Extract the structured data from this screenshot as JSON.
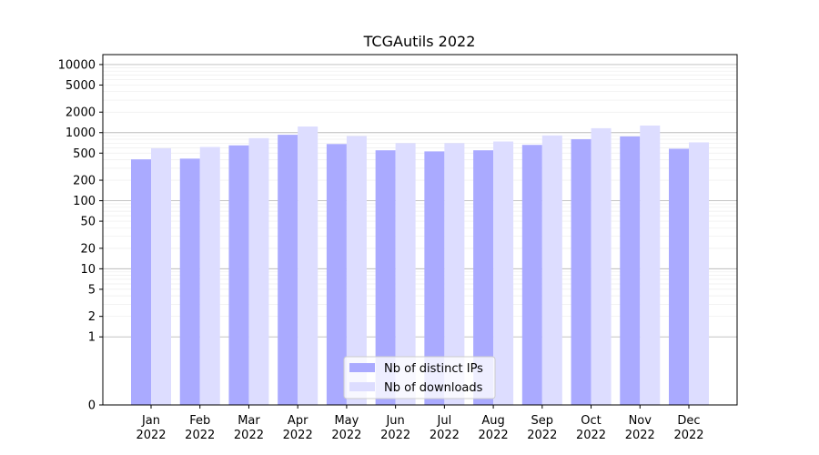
{
  "chart_data": {
    "type": "bar",
    "title": "TCGAutils 2022",
    "xlabel": "",
    "ylabel": "",
    "yscale": "symlog",
    "ylim": [
      0,
      14000
    ],
    "yticks": [
      0,
      1,
      2,
      5,
      10,
      20,
      50,
      100,
      200,
      500,
      1000,
      2000,
      5000,
      10000
    ],
    "ytick_labels": [
      "0",
      "1",
      "2",
      "5",
      "10",
      "20",
      "50",
      "100",
      "200",
      "500",
      "1000",
      "2000",
      "5000",
      "10000"
    ],
    "grid": true,
    "legend_position": "bottom-center",
    "categories": [
      "Jan\n2022",
      "Feb\n2022",
      "Mar\n2022",
      "Apr\n2022",
      "May\n2022",
      "Jun\n2022",
      "Jul\n2022",
      "Aug\n2022",
      "Sep\n2022",
      "Oct\n2022",
      "Nov\n2022",
      "Dec\n2022"
    ],
    "series": [
      {
        "name": "Nb of distinct IPs",
        "color": "#aaaaff",
        "values": [
          405,
          415,
          650,
          930,
          680,
          550,
          530,
          550,
          660,
          800,
          880,
          580
        ]
      },
      {
        "name": "Nb of downloads",
        "color": "#ddddff",
        "values": [
          590,
          615,
          830,
          1230,
          890,
          700,
          700,
          740,
          910,
          1160,
          1270,
          720
        ]
      }
    ]
  }
}
